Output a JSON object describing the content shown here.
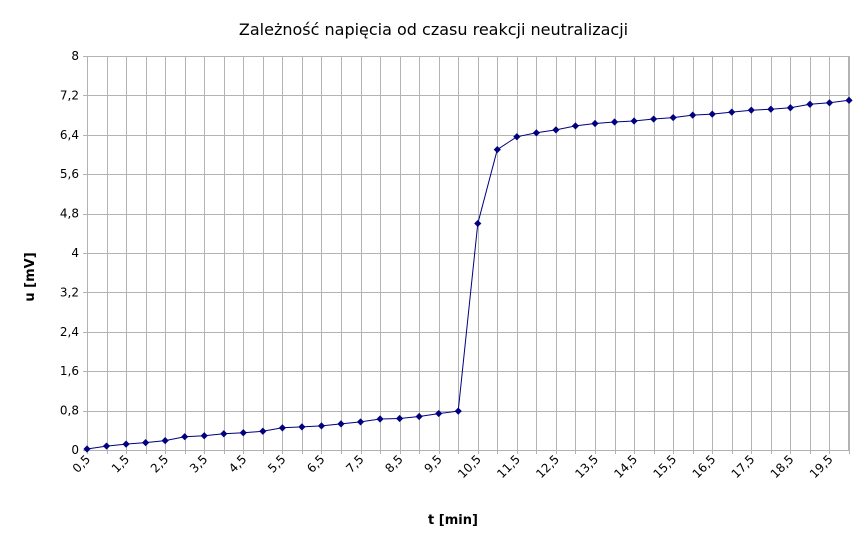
{
  "chart_data": {
    "type": "line",
    "title": "Zależność napięcia od czasu reakcji neutralizacji",
    "xlabel": "t [min]",
    "ylabel": "u [mV]",
    "xlim": [
      0.5,
      20
    ],
    "ylim": [
      0,
      8
    ],
    "grid": true,
    "legend": "none",
    "x_tick_labels": [
      "0,5",
      "1,5",
      "2,5",
      "3,5",
      "4,5",
      "5,5",
      "6,5",
      "7,5",
      "8,5",
      "9,5",
      "10,5",
      "11,5",
      "12,5",
      "13,5",
      "14,5",
      "15,5",
      "16,5",
      "17,5",
      "18,5",
      "19,5"
    ],
    "y_tick_labels": [
      "0",
      "0,8",
      "1,6",
      "2,4",
      "3,2",
      "4",
      "4,8",
      "5,6",
      "6,4",
      "7,2",
      "8"
    ],
    "y_ticks": [
      0,
      0.8,
      1.6,
      2.4,
      3.2,
      4,
      4.8,
      5.6,
      6.4,
      7.2,
      8
    ],
    "series": [
      {
        "color": "#000080",
        "marker": "diamond",
        "x": [
          0.5,
          1,
          1.5,
          2,
          2.5,
          3,
          3.5,
          4,
          4.5,
          5,
          5.5,
          6,
          6.5,
          7,
          7.5,
          8,
          8.5,
          9,
          9.5,
          10,
          10.5,
          11,
          11.5,
          12,
          12.5,
          13,
          13.5,
          14,
          14.5,
          15,
          15.5,
          16,
          16.5,
          17,
          17.5,
          18,
          18.5,
          19,
          19.5,
          20
        ],
        "values": [
          0.02,
          0.08,
          0.12,
          0.15,
          0.19,
          0.27,
          0.29,
          0.33,
          0.35,
          0.38,
          0.45,
          0.47,
          0.49,
          0.53,
          0.57,
          0.63,
          0.64,
          0.68,
          0.74,
          0.79,
          4.6,
          6.1,
          6.36,
          6.44,
          6.5,
          6.58,
          6.63,
          6.66,
          6.68,
          6.72,
          6.75,
          6.8,
          6.82,
          6.86,
          6.9,
          6.92,
          6.95,
          7.02,
          7.05,
          7.1
        ]
      }
    ]
  }
}
